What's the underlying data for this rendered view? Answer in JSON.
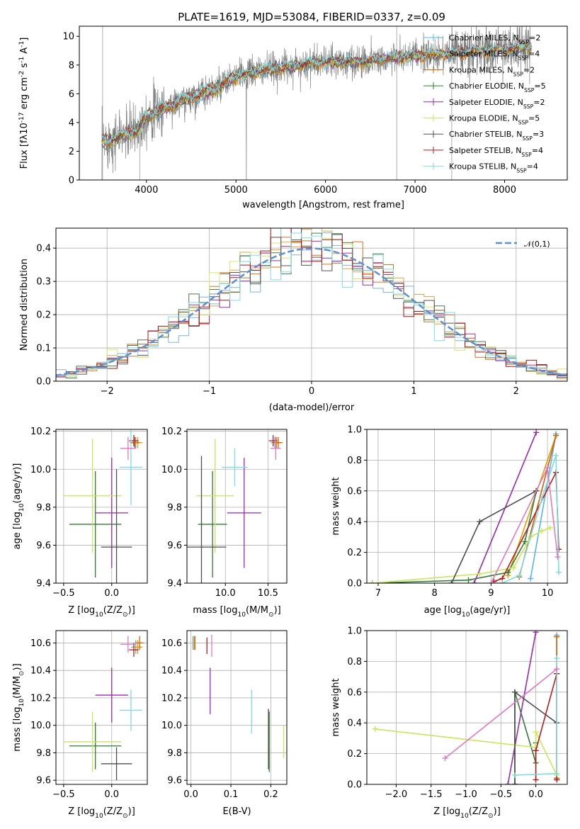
{
  "chart_data": [
    {
      "id": "spectrum",
      "type": "line",
      "title": "PLATE=1619, MJD=53084, FIBERID=0337, z=0.09",
      "xlabel": "wavelength [Angstrom, rest frame]",
      "ylabel": "Flux [f$\\lambda$10$^{-17}$ erg cm$^{-2}$ s$^{-1}$ A$^{-1}$]",
      "xlim": [
        3250,
        8700
      ],
      "ylim": [
        0,
        10.7
      ],
      "xticks": [
        4000,
        5000,
        6000,
        7000,
        8000
      ],
      "yticks": [
        0,
        2,
        4,
        6,
        8,
        10
      ],
      "grid": false,
      "legend_position": "right",
      "data_continuum": {
        "x": [
          3500,
          3700,
          3900,
          4000,
          4200,
          4400,
          4600,
          4800,
          5000,
          5200,
          5400,
          5600,
          5800,
          6000,
          6200,
          6400,
          6600,
          6800,
          7000,
          7200,
          7400,
          7600,
          7800,
          8000,
          8200,
          8300
        ],
        "y": [
          2.6,
          3.0,
          3.5,
          4.5,
          5.0,
          5.5,
          6.0,
          6.4,
          7.2,
          7.5,
          7.7,
          7.9,
          8.1,
          8.2,
          8.2,
          8.2,
          8.4,
          8.5,
          8.6,
          8.7,
          8.8,
          8.9,
          9.0,
          9.1,
          9.2,
          9.2
        ]
      },
      "legend": [
        "Chabrier MILES, N$_{SSP}$=2",
        "Salpeter MILES, N$_{SSP}$=4",
        "Kroupa MILES, N$_{SSP}$=2",
        "Chabrier ELODIE, N$_{SSP}$=5",
        "Salpeter ELODIE, N$_{SSP}$=2",
        "Kroupa ELODIE, N$_{SSP}$=5",
        "Chabrier STELIB, N$_{SSP}$=3",
        "Salpeter STELIB, N$_{SSP}$=4",
        "Kroupa STELIB, N$_{SSP}$=4"
      ]
    },
    {
      "id": "residuals",
      "type": "line",
      "xlabel": "(data-model)/error",
      "ylabel": "Normed distribution",
      "xlim": [
        -2.5,
        2.5
      ],
      "ylim": [
        0,
        0.46
      ],
      "xticks": [
        -2,
        -1,
        0,
        1,
        2
      ],
      "yticks": [
        0.0,
        0.1,
        0.2,
        0.3,
        0.4
      ],
      "grid": true,
      "legend": [
        "$\\mathcal{N}(0,1)$"
      ],
      "legend_position": "top-right"
    },
    {
      "id": "age-vs-z",
      "type": "scatter",
      "xlabel": "Z [log$_{10}$(Z/Z$_\\odot$)]",
      "ylabel": "age  [log$_{10}$(age/yr)]",
      "xlim": [
        -0.58,
        0.37
      ],
      "ylim": [
        9.4,
        10.21
      ],
      "xticks": [
        -0.5,
        0.0
      ],
      "xtick_labels": [
        "-0.5",
        "0.0"
      ],
      "yticks": [
        9.4,
        9.6,
        9.8,
        10.0,
        10.2
      ],
      "grid": true,
      "points": [
        {
          "series": 0,
          "x": 0.25,
          "xerr": 0.05,
          "y": 10.14,
          "yerr": 0.03
        },
        {
          "series": 1,
          "x": 0.27,
          "xerr": 0.05,
          "y": 10.14,
          "yerr": 0.03
        },
        {
          "series": 2,
          "x": 0.24,
          "xerr": 0.05,
          "y": 10.14,
          "yerr": 0.03
        },
        {
          "series": 3,
          "x": -0.17,
          "xerr": 0.27,
          "y": 9.71,
          "yerr": 0.28
        },
        {
          "series": 4,
          "x": 0.0,
          "xerr": 0.17,
          "y": 9.77,
          "yerr": 0.29
        },
        {
          "series": 5,
          "x": -0.2,
          "xerr": 0.3,
          "y": 9.86,
          "yerr": 0.3
        },
        {
          "series": 6,
          "x": 0.05,
          "xerr": 0.16,
          "y": 9.59,
          "yerr": 0.41
        },
        {
          "series": 7,
          "x": 0.23,
          "xerr": 0.05,
          "y": 10.15,
          "yerr": 0.03
        },
        {
          "series": 8,
          "x": 0.2,
          "xerr": 0.12,
          "y": 10.01,
          "yerr": 0.2
        },
        {
          "series": 9,
          "x": 0.17,
          "xerr": 0.08,
          "y": 10.11,
          "yerr": 0.06
        }
      ]
    },
    {
      "id": "age-vs-mass",
      "type": "scatter",
      "xlabel": "mass [log$_{10}$(M/M$_\\odot$)]",
      "xlim": [
        9.55,
        10.72
      ],
      "ylim": [
        9.4,
        10.21
      ],
      "xticks": [
        10.0,
        10.5
      ],
      "xtick_labels": [
        "10.0",
        "10.5"
      ],
      "yticks": [
        9.4,
        9.6,
        9.8,
        10.0,
        10.2
      ],
      "grid": true,
      "points": [
        {
          "series": 0,
          "x": 10.58,
          "xerr": 0.05,
          "y": 10.14,
          "yerr": 0.03
        },
        {
          "series": 1,
          "x": 10.6,
          "xerr": 0.05,
          "y": 10.14,
          "yerr": 0.03
        },
        {
          "series": 2,
          "x": 10.62,
          "xerr": 0.05,
          "y": 10.14,
          "yerr": 0.03
        },
        {
          "series": 3,
          "x": 9.85,
          "xerr": 0.17,
          "y": 9.71,
          "yerr": 0.28
        },
        {
          "series": 4,
          "x": 10.22,
          "xerr": 0.2,
          "y": 9.77,
          "yerr": 0.29
        },
        {
          "series": 5,
          "x": 9.88,
          "xerr": 0.22,
          "y": 9.86,
          "yerr": 0.3
        },
        {
          "series": 6,
          "x": 9.72,
          "xerr": 0.29,
          "y": 9.59,
          "yerr": 0.48
        },
        {
          "series": 7,
          "x": 10.56,
          "xerr": 0.05,
          "y": 10.15,
          "yerr": 0.03
        },
        {
          "series": 8,
          "x": 10.11,
          "xerr": 0.15,
          "y": 10.01,
          "yerr": 0.1
        },
        {
          "series": 9,
          "x": 10.59,
          "xerr": 0.06,
          "y": 10.11,
          "yerr": 0.06
        }
      ]
    },
    {
      "id": "massweight-vs-age",
      "type": "line",
      "xlabel": "age  [log$_{10}$(age/yr)]",
      "ylabel": "mass weight",
      "xlim": [
        6.8,
        10.35
      ],
      "ylim": [
        0,
        1.0
      ],
      "xticks": [
        7,
        8,
        9,
        10
      ],
      "yticks": [
        0.0,
        0.2,
        0.4,
        0.6,
        0.8,
        1.0
      ],
      "ytick_labels": [
        "0.0",
        "0.2",
        "0.4",
        "0.6",
        "0.8",
        "1.0"
      ],
      "grid": true,
      "series": [
        {
          "series": 0,
          "x": [
            9.7,
            10.15
          ],
          "y": [
            0.03,
            0.97
          ]
        },
        {
          "series": 1,
          "x": [
            9.3,
            10.15
          ],
          "y": [
            0.05,
            0.96
          ]
        },
        {
          "series": 2,
          "x": [
            9.5,
            10.15
          ],
          "y": [
            0.04,
            0.96
          ]
        },
        {
          "series": 3,
          "x": [
            6.9,
            8.6,
            9.3,
            9.6,
            9.8
          ],
          "y": [
            0.0,
            0.02,
            0.07,
            0.27,
            0.6
          ]
        },
        {
          "series": 4,
          "x": [
            8.7,
            9.8
          ],
          "y": [
            0.0,
            0.98
          ]
        },
        {
          "series": 5,
          "x": [
            6.9,
            8.8,
            9.4,
            9.7,
            9.9,
            10.05
          ],
          "y": [
            0.0,
            0.06,
            0.1,
            0.3,
            0.34,
            0.36
          ]
        },
        {
          "series": 6,
          "x": [
            8.3,
            8.8,
            9.8
          ],
          "y": [
            0.0,
            0.4,
            0.6
          ]
        },
        {
          "series": 7,
          "x": [
            9.05,
            9.2,
            10.15,
            10.2
          ],
          "y": [
            0.01,
            0.03,
            0.72,
            0.22
          ]
        },
        {
          "series": 8,
          "x": [
            9.2,
            9.5,
            9.9,
            10.15,
            10.2
          ],
          "y": [
            0.0,
            0.05,
            0.55,
            0.83,
            0.07
          ]
        },
        {
          "series": 9,
          "x": [
            9.0,
            10.0,
            10.18
          ],
          "y": [
            0.0,
            0.75,
            0.17
          ]
        }
      ]
    },
    {
      "id": "mass-vs-z",
      "type": "scatter",
      "xlabel": "Z [log$_{10}$(Z/Z$_\\odot$)]",
      "ylabel": "mass [log$_{10}$(M/M$_\\odot$)]",
      "xlim": [
        -0.58,
        0.37
      ],
      "ylim": [
        9.57,
        10.69
      ],
      "xticks": [
        -0.5,
        0.0
      ],
      "xtick_labels": [
        "-0.5",
        "0.0"
      ],
      "yticks": [
        9.6,
        9.8,
        10.0,
        10.2,
        10.4,
        10.6
      ],
      "grid": true,
      "points": [
        {
          "series": 0,
          "x": 0.25,
          "xerr": 0.05,
          "y": 10.57,
          "yerr": 0.05
        },
        {
          "series": 1,
          "x": 0.27,
          "xerr": 0.05,
          "y": 10.57,
          "yerr": 0.05
        },
        {
          "series": 2,
          "x": 0.29,
          "xerr": 0.04,
          "y": 10.6,
          "yerr": 0.05
        },
        {
          "series": 3,
          "x": -0.17,
          "xerr": 0.27,
          "y": 9.85,
          "yerr": 0.17
        },
        {
          "series": 4,
          "x": 0.0,
          "xerr": 0.17,
          "y": 10.22,
          "yerr": 0.2
        },
        {
          "series": 5,
          "x": -0.2,
          "xerr": 0.3,
          "y": 9.88,
          "yerr": 0.22
        },
        {
          "series": 6,
          "x": 0.05,
          "xerr": 0.16,
          "y": 9.72,
          "yerr": 0.12
        },
        {
          "series": 7,
          "x": 0.23,
          "xerr": 0.05,
          "y": 10.55,
          "yerr": 0.05
        },
        {
          "series": 8,
          "x": 0.2,
          "xerr": 0.12,
          "y": 10.11,
          "yerr": 0.15
        },
        {
          "series": 9,
          "x": 0.17,
          "xerr": 0.08,
          "y": 10.59,
          "yerr": 0.06
        }
      ]
    },
    {
      "id": "mass-vs-ebv",
      "type": "scatter",
      "xlabel": "E(B-V)",
      "xlim": [
        -0.01,
        0.24
      ],
      "ylim": [
        9.57,
        10.69
      ],
      "xticks": [
        0.0,
        0.1,
        0.2
      ],
      "xtick_labels": [
        "0.0",
        "0.1",
        "0.2"
      ],
      "yticks": [
        9.6,
        9.8,
        10.0,
        10.2,
        10.4,
        10.6
      ],
      "grid": true,
      "points": [
        {
          "series": 0,
          "x": 0.005,
          "y": 10.6,
          "yerr": 0.05
        },
        {
          "series": 1,
          "x": 0.008,
          "y": 10.6,
          "yerr": 0.05
        },
        {
          "series": 2,
          "x": 0.01,
          "y": 10.6,
          "yerr": 0.05
        },
        {
          "series": 3,
          "x": 0.196,
          "y": 9.88,
          "yerr": 0.22
        },
        {
          "series": 4,
          "x": 0.048,
          "y": 10.25,
          "yerr": 0.17
        },
        {
          "series": 5,
          "x": 0.232,
          "y": 9.88,
          "yerr": 0.12
        },
        {
          "series": 6,
          "x": 0.194,
          "y": 9.9,
          "yerr": 0.22
        },
        {
          "series": 7,
          "x": 0.04,
          "y": 10.58,
          "yerr": 0.06
        },
        {
          "series": 8,
          "x": 0.152,
          "y": 10.1,
          "yerr": 0.16
        },
        {
          "series": 9,
          "x": 0.052,
          "y": 10.58,
          "yerr": 0.08
        }
      ]
    },
    {
      "id": "massweight-vs-z",
      "type": "line",
      "xlabel": "Z [log$_{10}$(Z/Z$_\\odot$)]",
      "ylabel": "mass weight",
      "xlim": [
        -2.42,
        0.45
      ],
      "ylim": [
        0,
        1.0
      ],
      "xticks": [
        -2.0,
        -1.5,
        -1.0,
        -0.5,
        0.0
      ],
      "xtick_labels": [
        "-2.0",
        "-1.5",
        "-1.0",
        "-0.5",
        "0.0"
      ],
      "yticks": [
        0.0,
        0.2,
        0.4,
        0.6,
        0.8,
        1.0
      ],
      "ytick_labels": [
        "0.0",
        "0.2",
        "0.4",
        "0.6",
        "0.8",
        "1.0"
      ],
      "grid": true,
      "series": [
        {
          "series": 0,
          "x": [
            0.3,
            0.3
          ],
          "y": [
            0.03,
            0.97
          ]
        },
        {
          "series": 1,
          "x": [
            0.3,
            0.3
          ],
          "y": [
            0.04,
            0.96
          ]
        },
        {
          "series": 2,
          "x": [
            0.3,
            0.3
          ],
          "y": [
            0.04,
            0.96
          ]
        },
        {
          "series": 3,
          "x": [
            -0.3,
            -0.3,
            0.0,
            0.0
          ],
          "y": [
            0.0,
            0.6,
            0.14,
            0.27
          ]
        },
        {
          "series": 4,
          "x": [
            -0.4,
            0.0
          ],
          "y": [
            0.0,
            0.99
          ]
        },
        {
          "series": 5,
          "x": [
            -2.3,
            0.0,
            0.0,
            0.3
          ],
          "y": [
            0.36,
            0.24,
            0.34,
            0.06
          ]
        },
        {
          "series": 6,
          "x": [
            -0.3,
            -0.3,
            0.3,
            0.3
          ],
          "y": [
            0.0,
            0.6,
            0.4,
            0.72
          ]
        },
        {
          "series": 7,
          "x": [
            0.0,
            0.0,
            0.3,
            0.3
          ],
          "y": [
            0.03,
            0.22,
            0.72,
            0.03
          ]
        },
        {
          "series": 8,
          "x": [
            -0.3,
            0.3,
            0.3
          ],
          "y": [
            0.06,
            0.07,
            0.82
          ]
        },
        {
          "series": 9,
          "x": [
            -1.3,
            0.3
          ],
          "y": [
            0.17,
            0.75
          ]
        }
      ]
    }
  ],
  "series_colors": [
    "#56B4E9",
    "#E69F00",
    "#D55E00",
    "#2E7D32",
    "#9C27B0",
    "#C8E65A",
    "#4D4D4D",
    "#B71C1C",
    "#7FDBDF",
    "#E377C2"
  ],
  "hist_colors": [
    "#7FB3E0",
    "#E8A040",
    "#D97020",
    "#4A7A50",
    "#9C30B0",
    "#D6E870",
    "#555555",
    "#B01010",
    "#80DDE0"
  ],
  "gauss_color": "#5B8FD6",
  "data_color": "#808080"
}
